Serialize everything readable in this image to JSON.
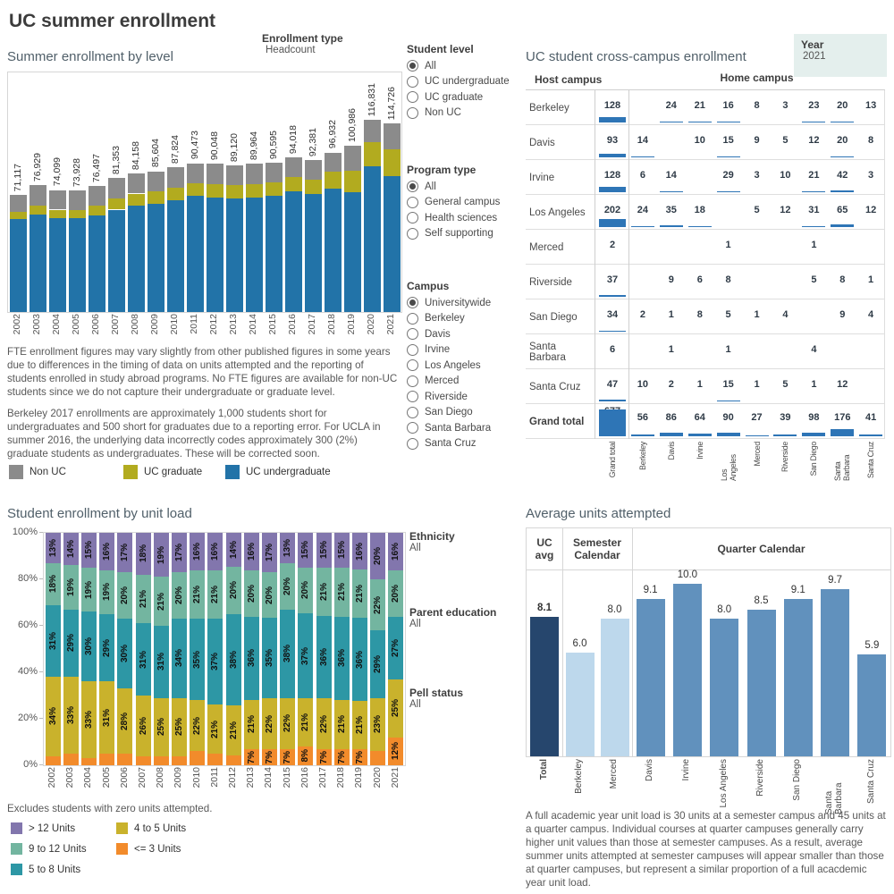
{
  "page_title": "UC summer enrollment",
  "colors": {
    "ug_blue": "#2273a8",
    "grad_olive": "#b2ab1f",
    "nonuc_gray": "#8b8b8b",
    "matrix_blue": "#2e75b6",
    "purple": "#8276ad",
    "green": "#73b5a0",
    "teal": "#2d97a5",
    "olive": "#c9b22c",
    "orange": "#f28b2b",
    "navy": "#26466d",
    "light_blue": "#bdd8ec",
    "medium_blue": "#6191bd"
  },
  "filters": {
    "enrollment_type": {
      "label": "Enrollment type",
      "value": "Headcount"
    },
    "student_level": {
      "label": "Student level",
      "selected": "All",
      "options": [
        "All",
        "UC undergraduate",
        "UC graduate",
        "Non UC"
      ]
    },
    "program_type": {
      "label": "Program type",
      "selected": "All",
      "options": [
        "All",
        "General campus",
        "Health sciences",
        "Self supporting"
      ]
    },
    "campus": {
      "label": "Campus",
      "selected": "Universitywide",
      "options": [
        "Universitywide",
        "Berkeley",
        "Davis",
        "Irvine",
        "Los Angeles",
        "Merced",
        "Riverside",
        "San Diego",
        "Santa Barbara",
        "Santa Cruz"
      ]
    },
    "year": {
      "label": "Year",
      "value": "2021"
    },
    "unit_load_filters": [
      {
        "label": "Ethnicity",
        "value": "All"
      },
      {
        "label": "Parent education",
        "value": "All"
      },
      {
        "label": "Pell status",
        "value": "All"
      }
    ]
  },
  "sections": {
    "enrollment_by_level": {
      "title": "Summer enrollment by level",
      "note1": "FTE enrollment figures may vary slightly from other published figures in some years due to differences in the timing of data on units attempted and the reporting of students enrolled in study abroad programs. No FTE figures are available for non-UC students since we do not capture their undergraduate or graduate level.",
      "note2": "Berkeley 2017 enrollments are approximately 1,000 students short for undergraduates and 500 short for graduates due to a reporting error. For UCLA in summer 2016, the underlying data incorrectly codes approximately 300 (2%) graduate students as undergraduates. These will be corrected soon.",
      "legend": [
        {
          "label": "Non UC",
          "color_key": "nonuc_gray"
        },
        {
          "label": "UC graduate",
          "color_key": "grad_olive"
        },
        {
          "label": "UC undergraduate",
          "color_key": "ug_blue"
        }
      ]
    },
    "cross_campus": {
      "title": "UC student cross-campus enrollment",
      "row_header": "Host campus",
      "col_header": "Home campus"
    },
    "unit_load": {
      "title": "Student enrollment by unit load",
      "footnote": "Excludes students with zero units attempted.",
      "legend_col1": [
        {
          "label": "> 12 Units",
          "color_key": "purple"
        },
        {
          "label": "9 to 12 Units",
          "color_key": "green"
        },
        {
          "label": "5 to 8 Units",
          "color_key": "teal"
        }
      ],
      "legend_col2": [
        {
          "label": "4 to 5 Units",
          "color_key": "olive"
        },
        {
          "label": "<= 3 Units",
          "color_key": "orange"
        }
      ]
    },
    "avg_units": {
      "title": "Average units attempted",
      "note": "A full academic year unit load is 30 units at a semester campus and 45 units at a quarter campus. Individual courses at quarter campuses generally carry higher unit values than those at semester campuses. As a result, average summer units attempted at semester campuses will appear smaller than those at quarter campuses, but represent a similar proportion of a full acacdemic year unit load."
    }
  },
  "chart_data": [
    {
      "type": "stacked_bar",
      "title": "Summer enrollment by level",
      "x": [
        "2002",
        "2003",
        "2004",
        "2005",
        "2006",
        "2007",
        "2008",
        "2009",
        "2010",
        "2011",
        "2012",
        "2013",
        "2014",
        "2015",
        "2016",
        "2017",
        "2018",
        "2019",
        "2020",
        "2021"
      ],
      "totals": [
        71117,
        76929,
        74099,
        73928,
        76497,
        81353,
        84158,
        85604,
        87824,
        90473,
        90048,
        89120,
        89964,
        90595,
        94018,
        92381,
        96932,
        100986,
        116831,
        114726
      ],
      "total_labels": [
        "71,117",
        "76,929",
        "74,099",
        "73,928",
        "76,497",
        "81,353",
        "84,158",
        "85,604",
        "87,824",
        "90,473",
        "90,048",
        "89,120",
        "89,964",
        "90,595",
        "94,018",
        "92,381",
        "96,932",
        "100,986",
        "116,831",
        "114,726"
      ],
      "series": [
        {
          "name": "UC undergraduate",
          "color_key": "ug_blue",
          "values": [
            56500,
            59200,
            57000,
            56900,
            58500,
            62200,
            64800,
            65900,
            68100,
            70600,
            69800,
            69100,
            69700,
            70700,
            73300,
            71600,
            75100,
            72700,
            88800,
            82600
          ]
        },
        {
          "name": "UC graduate",
          "color_key": "grad_olive",
          "values": [
            4300,
            5400,
            5200,
            5200,
            6100,
            6900,
            7200,
            7300,
            7500,
            7700,
            7700,
            8000,
            8100,
            8200,
            8900,
            8800,
            10200,
            13100,
            14600,
            16100
          ]
        },
        {
          "name": "Non UC",
          "color_key": "nonuc_gray",
          "values": [
            10317,
            12329,
            11899,
            11828,
            11897,
            12253,
            12158,
            12404,
            12224,
            12173,
            12548,
            12020,
            12164,
            11695,
            11818,
            11981,
            11632,
            15186,
            13431,
            16026
          ]
        }
      ],
      "note": "Series values are estimated from bar segment proportions; totals are labeled on the chart."
    },
    {
      "type": "matrix",
      "title": "UC student cross-campus enrollment",
      "columns": [
        "Grand total",
        "Berkeley",
        "Davis",
        "Irvine",
        "Los Angeles",
        "Merced",
        "Riverside",
        "San Diego",
        "Santa Barbara",
        "Santa Cruz"
      ],
      "rows": [
        {
          "host": "Berkeley",
          "total": 128,
          "cells": [
            null,
            24,
            21,
            16,
            8,
            3,
            23,
            20,
            13
          ]
        },
        {
          "host": "Davis",
          "total": 93,
          "cells": [
            14,
            null,
            10,
            15,
            9,
            5,
            12,
            20,
            8
          ]
        },
        {
          "host": "Irvine",
          "total": 128,
          "cells": [
            6,
            14,
            null,
            29,
            3,
            10,
            21,
            42,
            3
          ]
        },
        {
          "host": "Los Angeles",
          "total": 202,
          "cells": [
            24,
            35,
            18,
            null,
            5,
            12,
            31,
            65,
            12
          ]
        },
        {
          "host": "Merced",
          "total": 2,
          "cells": [
            null,
            null,
            null,
            1,
            null,
            null,
            1,
            null,
            null
          ]
        },
        {
          "host": "Riverside",
          "total": 37,
          "cells": [
            null,
            9,
            6,
            8,
            null,
            null,
            5,
            8,
            1
          ]
        },
        {
          "host": "San Diego",
          "total": 34,
          "cells": [
            2,
            1,
            8,
            5,
            1,
            4,
            null,
            9,
            4
          ]
        },
        {
          "host": "Santa Barbara",
          "total": 6,
          "cells": [
            null,
            1,
            null,
            1,
            null,
            null,
            4,
            null,
            null
          ]
        },
        {
          "host": "Santa Cruz",
          "total": 47,
          "cells": [
            10,
            2,
            1,
            15,
            1,
            5,
            1,
            12,
            null
          ]
        },
        {
          "host": "Grand total",
          "total": 677,
          "cells": [
            56,
            86,
            64,
            90,
            27,
            39,
            98,
            176,
            41
          ]
        }
      ]
    },
    {
      "type": "stacked_bar_100",
      "title": "Student enrollment by unit load",
      "x": [
        "2002",
        "2003",
        "2004",
        "2005",
        "2006",
        "2007",
        "2008",
        "2009",
        "2010",
        "2011",
        "2012",
        "2013",
        "2014",
        "2015",
        "2016",
        "2017",
        "2018",
        "2019",
        "2020",
        "2021"
      ],
      "y_ticks": [
        "0%",
        "20%",
        "40%",
        "60%",
        "80%",
        "100%"
      ],
      "series_bottom_to_top": [
        {
          "name": "<= 3 Units",
          "color_key": "orange",
          "values": [
            4,
            5,
            3,
            5,
            5,
            4,
            4,
            4,
            6,
            5,
            4,
            7,
            7,
            7,
            8,
            7,
            7,
            7,
            6,
            12
          ]
        },
        {
          "name": "4 to 5 Units",
          "color_key": "olive",
          "values": [
            34,
            33,
            33,
            31,
            28,
            26,
            25,
            25,
            22,
            21,
            21,
            21,
            22,
            22,
            21,
            22,
            21,
            21,
            23,
            25
          ]
        },
        {
          "name": "5 to 8 Units",
          "color_key": "teal",
          "values": [
            31,
            29,
            30,
            29,
            30,
            31,
            31,
            34,
            35,
            37,
            38,
            36,
            35,
            38,
            37,
            36,
            36,
            36,
            29,
            27
          ]
        },
        {
          "name": "9 to 12 Units",
          "color_key": "green",
          "values": [
            18,
            19,
            19,
            19,
            20,
            21,
            21,
            20,
            21,
            21,
            20,
            20,
            20,
            20,
            20,
            21,
            21,
            21,
            22,
            20
          ]
        },
        {
          "name": "> 12 Units",
          "color_key": "purple",
          "values": [
            13,
            14,
            15,
            16,
            17,
            18,
            19,
            17,
            16,
            16,
            14,
            16,
            17,
            13,
            15,
            15,
            15,
            16,
            20,
            16
          ]
        }
      ]
    },
    {
      "type": "grouped_bar",
      "title": "Average units attempted",
      "groups": [
        {
          "name": "UC avg",
          "bars": [
            {
              "label": "Total",
              "value": 8.1,
              "value_label": "8.1",
              "color_key": "navy",
              "bold": true
            }
          ]
        },
        {
          "name": "Semester Calendar",
          "bars": [
            {
              "label": "Berkeley",
              "value": 6.0,
              "value_label": "6.0",
              "color_key": "light_blue"
            },
            {
              "label": "Merced",
              "value": 8.0,
              "value_label": "8.0",
              "color_key": "light_blue"
            }
          ]
        },
        {
          "name": "Quarter Calendar",
          "bars": [
            {
              "label": "Davis",
              "value": 9.1,
              "value_label": "9.1",
              "color_key": "medium_blue"
            },
            {
              "label": "Irvine",
              "value": 10.0,
              "value_label": "10.0",
              "color_key": "medium_blue"
            },
            {
              "label": "Los Angeles",
              "value": 8.0,
              "value_label": "8.0",
              "color_key": "medium_blue"
            },
            {
              "label": "Riverside",
              "value": 8.5,
              "value_label": "8.5",
              "color_key": "medium_blue"
            },
            {
              "label": "San Diego",
              "value": 9.1,
              "value_label": "9.1",
              "color_key": "medium_blue"
            },
            {
              "label": "Santa Barbara",
              "value": 9.7,
              "value_label": "9.7",
              "color_key": "medium_blue"
            },
            {
              "label": "Santa Cruz",
              "value": 5.9,
              "value_label": "5.9",
              "color_key": "medium_blue"
            }
          ]
        }
      ]
    }
  ]
}
